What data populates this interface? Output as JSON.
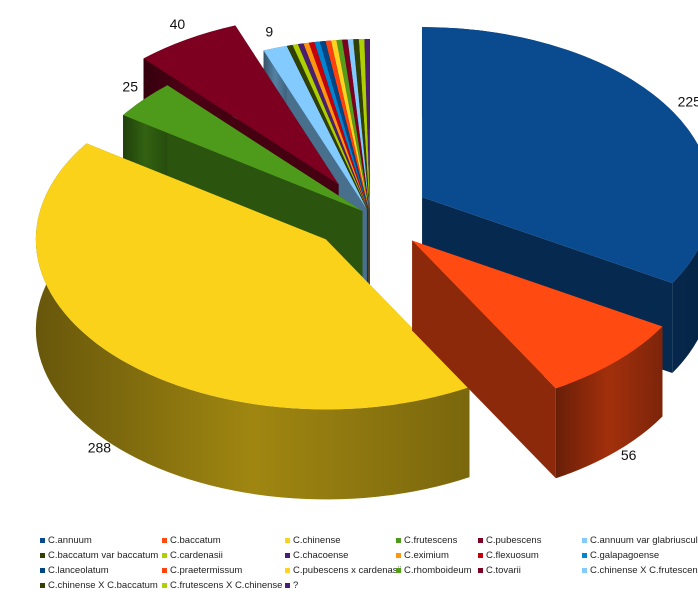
{
  "chart_data": {
    "type": "pie",
    "style": "3d-exploded",
    "legend_position": "bottom",
    "series": [
      {
        "name": "C.annuum",
        "value": 225,
        "color": "#0a4a8f",
        "label": "225"
      },
      {
        "name": "C.baccatum",
        "value": 56,
        "color": "#ff4a12",
        "label": "56"
      },
      {
        "name": "C.chinense",
        "value": 288,
        "color": "#fad21a",
        "label": "288"
      },
      {
        "name": "C.frutescens",
        "value": 25,
        "color": "#4e9a1a",
        "label": "25"
      },
      {
        "name": "C.pubescens",
        "value": 40,
        "color": "#7e0021",
        "label": "40"
      },
      {
        "name": "C.annuum var glabriusculum",
        "value": 9,
        "color": "#83caff",
        "label": "9"
      },
      {
        "name": "C.baccatum var baccatum",
        "value": 2,
        "color": "#314004",
        "label": ""
      },
      {
        "name": "C.cardenasii",
        "value": 2,
        "color": "#aecf00",
        "label": ""
      },
      {
        "name": "C.chacoense",
        "value": 2,
        "color": "#4b1f6f",
        "label": ""
      },
      {
        "name": "C.eximium",
        "value": 2,
        "color": "#ff950e",
        "label": ""
      },
      {
        "name": "C.flexuosum",
        "value": 2,
        "color": "#c5000b",
        "label": ""
      },
      {
        "name": "C.galapagoense",
        "value": 2,
        "color": "#0084d1",
        "label": ""
      },
      {
        "name": "C.lanceolatum",
        "value": 2,
        "color": "#004586",
        "label": ""
      },
      {
        "name": "C.praetermissum",
        "value": 2,
        "color": "#ff420e",
        "label": ""
      },
      {
        "name": "C.pubescens x cardenasii",
        "value": 2,
        "color": "#ffd320",
        "label": ""
      },
      {
        "name": "C.rhomboideum",
        "value": 2,
        "color": "#579d1c",
        "label": ""
      },
      {
        "name": "C.tovarii",
        "value": 2,
        "color": "#7e0021",
        "label": ""
      },
      {
        "name": "C.chinense X C.frutescens",
        "value": 2,
        "color": "#83caff",
        "label": ""
      },
      {
        "name": "C.chinense X C.baccatum",
        "value": 2,
        "color": "#314004",
        "label": ""
      },
      {
        "name": "C.frutescens X C.chinense",
        "value": 2,
        "color": "#aecf00",
        "label": ""
      },
      {
        "name": "?",
        "value": 2,
        "color": "#4b1f6f",
        "label": ""
      }
    ]
  }
}
